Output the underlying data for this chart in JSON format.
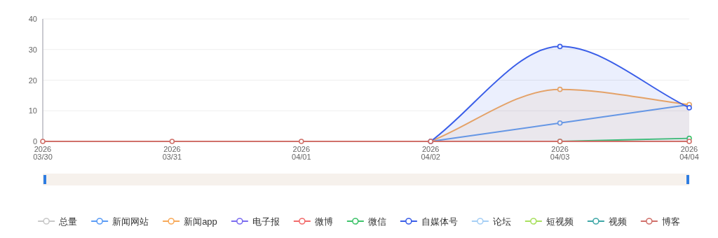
{
  "chart_data": {
    "type": "line",
    "categories": [
      "2026\n03/30",
      "2026\n03/31",
      "2026\n04/01",
      "2026\n04/02",
      "2026\n04/03",
      "2026\n04/04"
    ],
    "ylim": [
      0,
      40
    ],
    "yticks": [
      0,
      10,
      20,
      30,
      40
    ],
    "grid": "y",
    "legend": "bottom",
    "marker": "circle",
    "line_style": "solid",
    "series": [
      {
        "name": "总量",
        "color": "#c8c8c8",
        "values": [
          null,
          null,
          null,
          null,
          null,
          null
        ]
      },
      {
        "name": "新闻网站",
        "color": "#5b9cf5",
        "values": [
          null,
          null,
          null,
          0,
          6,
          12
        ]
      },
      {
        "name": "新闻app",
        "type": "area",
        "color": "#f8aa5a",
        "values": [
          null,
          null,
          null,
          0,
          17,
          12
        ]
      },
      {
        "name": "电子报",
        "color": "#7b6cf0",
        "values": [
          null,
          null,
          null,
          null,
          null,
          null
        ]
      },
      {
        "name": "微博",
        "color": "#f26b6b",
        "values": [
          null,
          null,
          null,
          null,
          null,
          null
        ]
      },
      {
        "name": "微信",
        "color": "#3fc36b",
        "values": [
          null,
          null,
          null,
          null,
          0,
          1
        ]
      },
      {
        "name": "自媒体号",
        "type": "area",
        "color": "#3a5ee8",
        "values": [
          null,
          null,
          null,
          0,
          31,
          11
        ]
      },
      {
        "name": "论坛",
        "color": "#a6cff5",
        "values": [
          null,
          null,
          null,
          null,
          null,
          null
        ]
      },
      {
        "name": "短视频",
        "color": "#a9e060",
        "values": [
          null,
          null,
          null,
          null,
          null,
          null
        ]
      },
      {
        "name": "视频",
        "color": "#3fa7a7",
        "values": [
          null,
          null,
          null,
          null,
          null,
          null
        ]
      },
      {
        "name": "博客",
        "color": "#d0706a",
        "values": [
          0,
          0,
          0,
          0,
          0,
          0
        ]
      }
    ]
  }
}
